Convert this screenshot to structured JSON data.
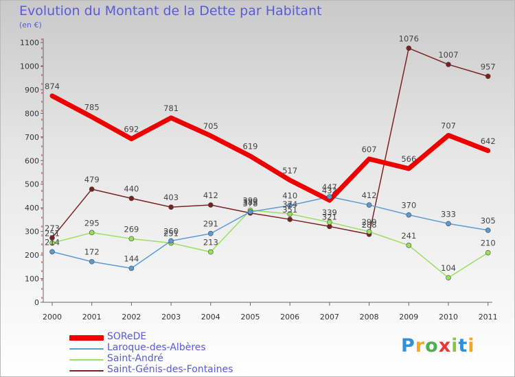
{
  "title": "Evolution du Montant de la Dette par Habitant",
  "subtitle": "(en €)",
  "logo": "Proxiti",
  "chart_data": {
    "type": "line",
    "x": [
      "2000",
      "2001",
      "2002",
      "2003",
      "2004",
      "2005",
      "2006",
      "2007",
      "2008",
      "2009",
      "2010",
      "2011"
    ],
    "ylim": [
      0,
      1100
    ],
    "yticks": [
      0,
      100,
      200,
      300,
      400,
      500,
      600,
      700,
      800,
      900,
      1000,
      1100
    ],
    "grid": false,
    "legend": "bottom-left",
    "series": [
      {
        "name": "SOReDE",
        "color": "#ee0000",
        "values": [
          874,
          785,
          692,
          781,
          705,
          619,
          517,
          432,
          607,
          566,
          707,
          642
        ]
      },
      {
        "name": "Laroque-des-Albères",
        "color": "#5b9bd5",
        "values": [
          214,
          172,
          144,
          260,
          291,
          383,
          410,
          447,
          412,
          370,
          333,
          305
        ]
      },
      {
        "name": "Saint-André",
        "color": "#99e05a",
        "values": [
          251,
          295,
          269,
          251,
          213,
          390,
          374,
          339,
          299,
          241,
          104,
          210
        ]
      },
      {
        "name": "Saint-Génis-des-Fontaines",
        "color": "#7b2020",
        "values": [
          273,
          479,
          440,
          403,
          412,
          378,
          351,
          321,
          288,
          1076,
          1007,
          957
        ]
      }
    ]
  }
}
